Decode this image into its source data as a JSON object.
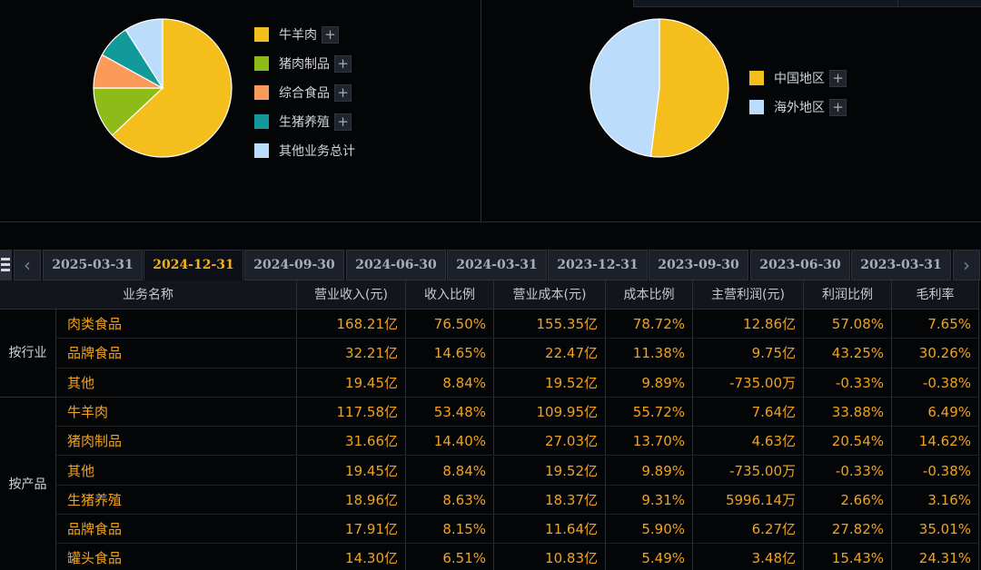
{
  "colors": {
    "niu_yang_rou": "#f4be1d",
    "zhu_rou_zhipin": "#8dbb17",
    "zonghe_shipin": "#fc9a5a",
    "shengzhu_yangzhi": "#12999a",
    "qita_zongji": "#bbdcfa",
    "zhongguo": "#f4be1d",
    "haiwai": "#bbdcfa",
    "active_tab": "#f3b21d",
    "table_value": "#f2a21c"
  },
  "chart_data": [
    {
      "type": "pie",
      "labels": [
        "牛羊肉",
        "猪肉制品",
        "综合食品",
        "生猪养殖",
        "其他业务总计"
      ],
      "values": [
        63,
        12,
        8,
        8,
        9
      ],
      "colors": [
        "#f4be1d",
        "#8dbb17",
        "#fc9a5a",
        "#12999a",
        "#bbdcfa"
      ],
      "legend": "right"
    },
    {
      "type": "pie",
      "labels": [
        "中国地区",
        "海外地区"
      ],
      "values": [
        52,
        48
      ],
      "colors": [
        "#f4be1d",
        "#bbdcfa"
      ],
      "legend": "right"
    }
  ],
  "legend_left": [
    "牛羊肉",
    "猪肉制品",
    "综合食品",
    "生猪养殖",
    "其他业务总计"
  ],
  "legend_right": [
    "中国地区",
    "海外地区"
  ],
  "icons": {
    "menu": "menu-icon",
    "prev": "chevron-left-icon",
    "next": "chevron-right-icon",
    "expand": "plus-icon"
  },
  "tabs": {
    "prev": "‹",
    "next": "›",
    "items": [
      "2025-03-31",
      "2024-12-31",
      "2024-09-30",
      "2024-06-30",
      "2024-03-31",
      "2023-12-31",
      "2023-09-30",
      "2023-06-30",
      "2023-03-31"
    ],
    "active": "2024-12-31"
  },
  "table": {
    "headers": [
      "业务名称",
      "营业收入(元)",
      "收入比例",
      "营业成本(元)",
      "成本比例",
      "主营利润(元)",
      "利润比例",
      "毛利率"
    ],
    "groups": [
      "按行业",
      "按产品"
    ],
    "rows": [
      [
        "肉类食品",
        "168.21亿",
        "76.50%",
        "155.35亿",
        "78.72%",
        "12.86亿",
        "57.08%",
        "7.65%"
      ],
      [
        "品牌食品",
        "32.21亿",
        "14.65%",
        "22.47亿",
        "11.38%",
        "9.75亿",
        "43.25%",
        "30.26%"
      ],
      [
        "其他",
        "19.45亿",
        "8.84%",
        "19.52亿",
        "9.89%",
        "-735.00万",
        "-0.33%",
        "-0.38%"
      ],
      [
        "牛羊肉",
        "117.58亿",
        "53.48%",
        "109.95亿",
        "55.72%",
        "7.64亿",
        "33.88%",
        "6.49%"
      ],
      [
        "猪肉制品",
        "31.66亿",
        "14.40%",
        "27.03亿",
        "13.70%",
        "4.63亿",
        "20.54%",
        "14.62%"
      ],
      [
        "其他",
        "19.45亿",
        "8.84%",
        "19.52亿",
        "9.89%",
        "-735.00万",
        "-0.33%",
        "-0.38%"
      ],
      [
        "生猪养殖",
        "18.96亿",
        "8.63%",
        "18.37亿",
        "9.31%",
        "5996.14万",
        "2.66%",
        "3.16%"
      ],
      [
        "品牌食品",
        "17.91亿",
        "8.15%",
        "11.64亿",
        "5.90%",
        "6.27亿",
        "27.82%",
        "35.01%"
      ],
      [
        "罐头食品",
        "14.30亿",
        "6.51%",
        "10.83亿",
        "5.49%",
        "3.48亿",
        "15.43%",
        "24.31%"
      ]
    ]
  }
}
